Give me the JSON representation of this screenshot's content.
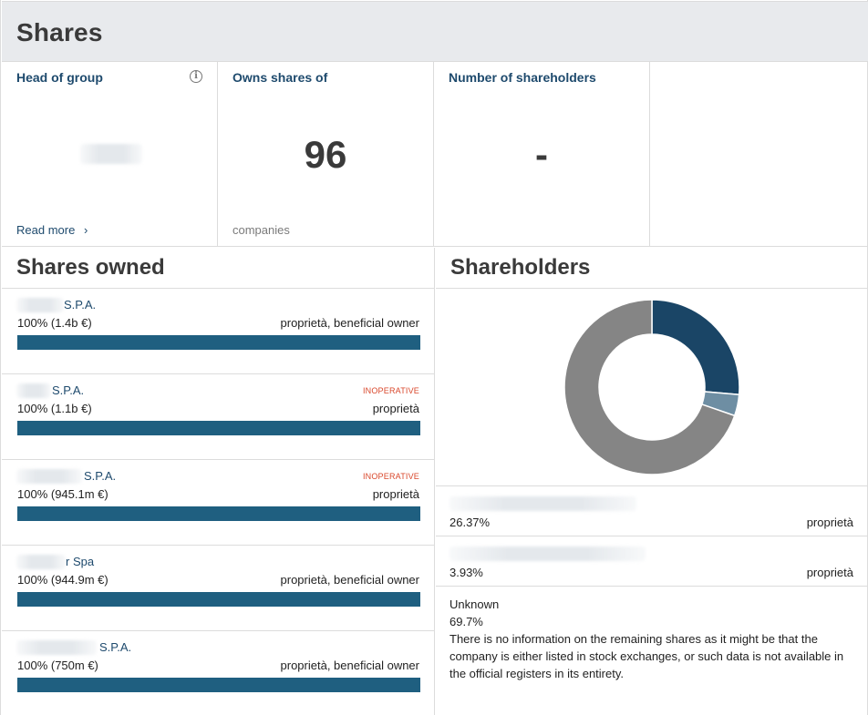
{
  "header": {
    "title": "Shares"
  },
  "kpis": {
    "head_of_group": {
      "title": "Head of group",
      "link": "Read more",
      "link_chevron": "›",
      "info_icon": "i"
    },
    "owns_shares": {
      "title": "Owns shares of",
      "value": "96",
      "unit": "companies"
    },
    "shareholders_count": {
      "title": "Number of shareholders",
      "value": "-"
    }
  },
  "shares_owned": {
    "title": "Shares owned",
    "items": [
      {
        "name": "S.P.A.",
        "status": "",
        "percent_text": "100% (1.4b €)",
        "role": "proprietà, beneficial owner",
        "percent": 100
      },
      {
        "name": "S.P.A.",
        "status": "INOPERATIVE",
        "percent_text": "100% (1.1b €)",
        "role": "proprietà",
        "percent": 100
      },
      {
        "name": "S.P.A.",
        "status": "INOPERATIVE",
        "percent_text": "100% (945.1m €)",
        "role": "proprietà",
        "percent": 100
      },
      {
        "name": "r Spa",
        "status": "",
        "percent_text": "100% (944.9m €)",
        "role": "proprietà, beneficial owner",
        "percent": 100
      },
      {
        "name": "S.P.A.",
        "status": "",
        "percent_text": "100% (750m €)",
        "role": "proprietà, beneficial owner",
        "percent": 100
      }
    ]
  },
  "shareholders": {
    "title": "Shareholders",
    "items": [
      {
        "percent_text": "26.37%",
        "role": "proprietà",
        "value": 26.37,
        "color": "#1a4566"
      },
      {
        "percent_text": "3.93%",
        "role": "proprietà",
        "value": 3.93,
        "color": "#6e8ea3"
      }
    ],
    "unknown": {
      "label": "Unknown",
      "percent_text": "69.7%",
      "value": 69.7,
      "color": "#858585",
      "note": "There is no information on the remaining shares as it might be that the company is either listed in stock exchanges, or such data is not available in the official registers in its entirety."
    }
  }
}
